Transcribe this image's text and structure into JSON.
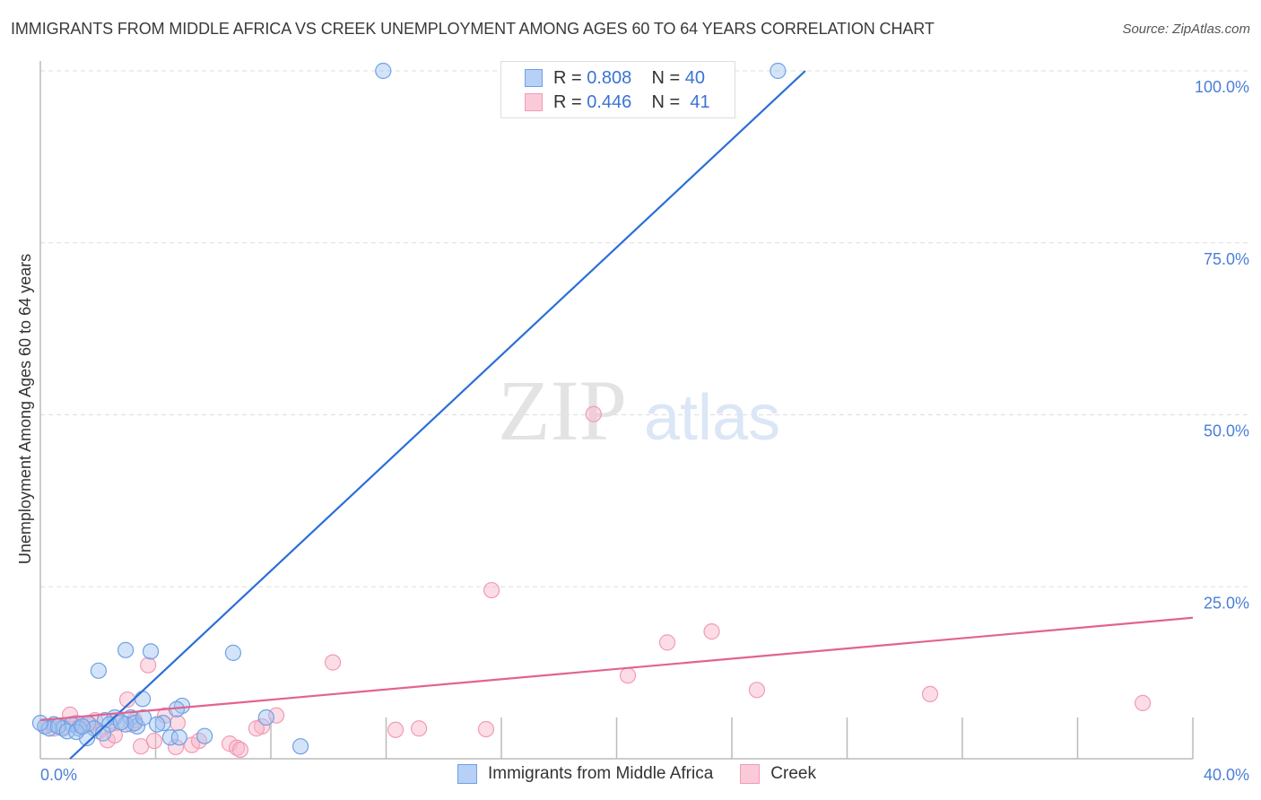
{
  "title": "IMMIGRANTS FROM MIDDLE AFRICA VS CREEK UNEMPLOYMENT AMONG AGES 60 TO 64 YEARS CORRELATION CHART",
  "source": "Source: ZipAtlas.com",
  "watermark": "ZIPatlas",
  "chart_data": {
    "type": "scatter",
    "xlabel": "",
    "ylabel": "Unemployment Among Ages 60 to 64 years",
    "xlim": [
      0,
      40
    ],
    "ylim": [
      0,
      100
    ],
    "x_tick_labels": [
      "0.0%",
      "40.0%"
    ],
    "y_tick_labels": [
      "25.0%",
      "50.0%",
      "75.0%",
      "100.0%"
    ],
    "y_ticks": [
      25,
      50,
      75,
      100
    ],
    "grid": true,
    "legend_position": "top-center",
    "series": [
      {
        "name": "Immigrants from Middle Africa",
        "color": "#6fa0e6",
        "line_color": "#2a6fd6",
        "R": "0.808",
        "N": "40",
        "trend": [
          [
            1.03,
            0
          ],
          [
            26.55,
            100
          ]
        ],
        "points": [
          [
            11.9,
            100
          ],
          [
            25.6,
            100
          ],
          [
            2.96,
            15.8
          ],
          [
            3.83,
            15.6
          ],
          [
            6.69,
            15.4
          ],
          [
            2.02,
            12.8
          ],
          [
            3.55,
            8.7
          ],
          [
            4.92,
            7.7
          ],
          [
            4.73,
            7.2
          ],
          [
            7.84,
            6.0
          ],
          [
            3.14,
            6.0
          ],
          [
            2.58,
            6.0
          ],
          [
            2.24,
            5.6
          ],
          [
            4.26,
            5.2
          ],
          [
            3.36,
            4.7
          ],
          [
            1.65,
            5.1
          ],
          [
            1.09,
            5.0
          ],
          [
            0.47,
            5.0
          ],
          [
            0.16,
            4.7
          ],
          [
            0.78,
            4.4
          ],
          [
            1.34,
            4.4
          ],
          [
            1.87,
            4.4
          ],
          [
            2.4,
            5.0
          ],
          [
            2.96,
            5.0
          ],
          [
            4.51,
            3.1
          ],
          [
            4.82,
            3.1
          ],
          [
            5.7,
            3.3
          ],
          [
            1.62,
            3.0
          ],
          [
            2.18,
            3.7
          ],
          [
            9.03,
            1.8
          ],
          [
            0.31,
            4.4
          ],
          [
            0.62,
            4.7
          ],
          [
            3.27,
            5.2
          ],
          [
            2.8,
            5.3
          ],
          [
            0.0,
            5.2
          ],
          [
            0.93,
            4.0
          ],
          [
            1.25,
            3.9
          ],
          [
            3.58,
            6.0
          ],
          [
            1.46,
            4.7
          ],
          [
            4.05,
            5.0
          ]
        ]
      },
      {
        "name": "Creek",
        "color": "#f29ab6",
        "line_color": "#e2638f",
        "R": "0.446",
        "N": "41",
        "trend": [
          [
            0,
            5.6
          ],
          [
            40,
            20.5
          ]
        ],
        "points": [
          [
            19.2,
            50.1
          ],
          [
            15.66,
            24.5
          ],
          [
            23.3,
            18.5
          ],
          [
            21.76,
            16.9
          ],
          [
            20.39,
            12.1
          ],
          [
            3.74,
            13.6
          ],
          [
            10.15,
            14.0
          ],
          [
            3.02,
            8.6
          ],
          [
            24.87,
            10.0
          ],
          [
            30.88,
            9.4
          ],
          [
            38.26,
            8.1
          ],
          [
            1.03,
            6.4
          ],
          [
            8.19,
            6.3
          ],
          [
            4.33,
            6.3
          ],
          [
            7.69,
            4.7
          ],
          [
            4.76,
            5.2
          ],
          [
            7.5,
            4.4
          ],
          [
            12.33,
            4.2
          ],
          [
            13.14,
            4.4
          ],
          [
            15.47,
            4.3
          ],
          [
            1.9,
            5.6
          ],
          [
            2.65,
            5.2
          ],
          [
            0.16,
            4.7
          ],
          [
            0.47,
            4.4
          ],
          [
            0.78,
            4.6
          ],
          [
            1.4,
            4.7
          ],
          [
            2.02,
            4.0
          ],
          [
            2.33,
            2.7
          ],
          [
            2.58,
            3.4
          ],
          [
            3.18,
            5.0
          ],
          [
            3.49,
            1.8
          ],
          [
            3.95,
            2.6
          ],
          [
            4.7,
            1.7
          ],
          [
            5.26,
            2.0
          ],
          [
            5.51,
            2.6
          ],
          [
            6.57,
            2.2
          ],
          [
            6.82,
            1.6
          ],
          [
            6.94,
            1.3
          ],
          [
            1.71,
            5.0
          ],
          [
            1.25,
            5.2
          ],
          [
            3.27,
            5.6
          ]
        ]
      }
    ]
  },
  "legend": {
    "r_label": "R =",
    "n_label": "N =",
    "rows": [
      {
        "r": "0.808",
        "n": "40"
      },
      {
        "r": "0.446",
        "n": "41"
      }
    ]
  },
  "bottom_legend": [
    "Immigrants from Middle Africa",
    "Creek"
  ]
}
